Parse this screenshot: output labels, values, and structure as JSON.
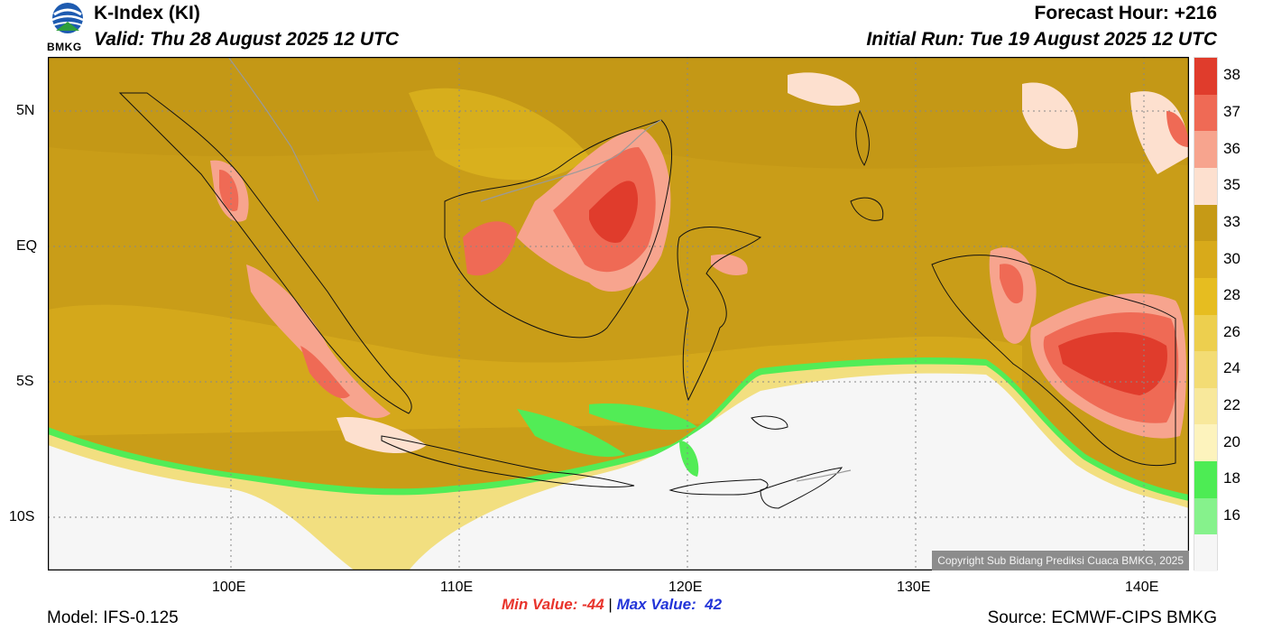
{
  "header": {
    "logo_text": "BMKG",
    "title": "K-Index (KI)",
    "valid": "Valid: Thu 28 August 2025 12 UTC",
    "forecast_hour": "Forecast Hour: +216",
    "initial_run": "Initial Run: Tue 19 August 2025 12 UTC"
  },
  "map": {
    "lat_ticks": [
      "5N",
      "EQ",
      "5S",
      "10S"
    ],
    "lon_ticks": [
      "100E",
      "110E",
      "120E",
      "130E",
      "140E"
    ],
    "copyright": "Copyright Sub Bidang Prediksi Cuaca BMKG, 2025"
  },
  "colorbar": {
    "levels": [
      {
        "label": "38",
        "color": "#e03c2c"
      },
      {
        "label": "37",
        "color": "#ef6a55"
      },
      {
        "label": "36",
        "color": "#f7a48e"
      },
      {
        "label": "35",
        "color": "#fde0cf"
      },
      {
        "label": "33",
        "color": "#c69a16"
      },
      {
        "label": "30",
        "color": "#d8aa1a"
      },
      {
        "label": "28",
        "color": "#e6bd20"
      },
      {
        "label": "26",
        "color": "#edcf4e"
      },
      {
        "label": "24",
        "color": "#f3dc74"
      },
      {
        "label": "22",
        "color": "#f8e89b"
      },
      {
        "label": "20",
        "color": "#fdf3bd"
      },
      {
        "label": "18",
        "color": "#4dec54"
      },
      {
        "label": "16",
        "color": "#86f28c"
      },
      {
        "label": "",
        "color": "#f6f6f6"
      }
    ]
  },
  "stats": {
    "min": "Min Value: -44",
    "separator": "|",
    "max": "Max Value:  42"
  },
  "footer": {
    "model": "Model: IFS-0.125",
    "source": "Source: ECMWF-CIPS BMKG"
  }
}
